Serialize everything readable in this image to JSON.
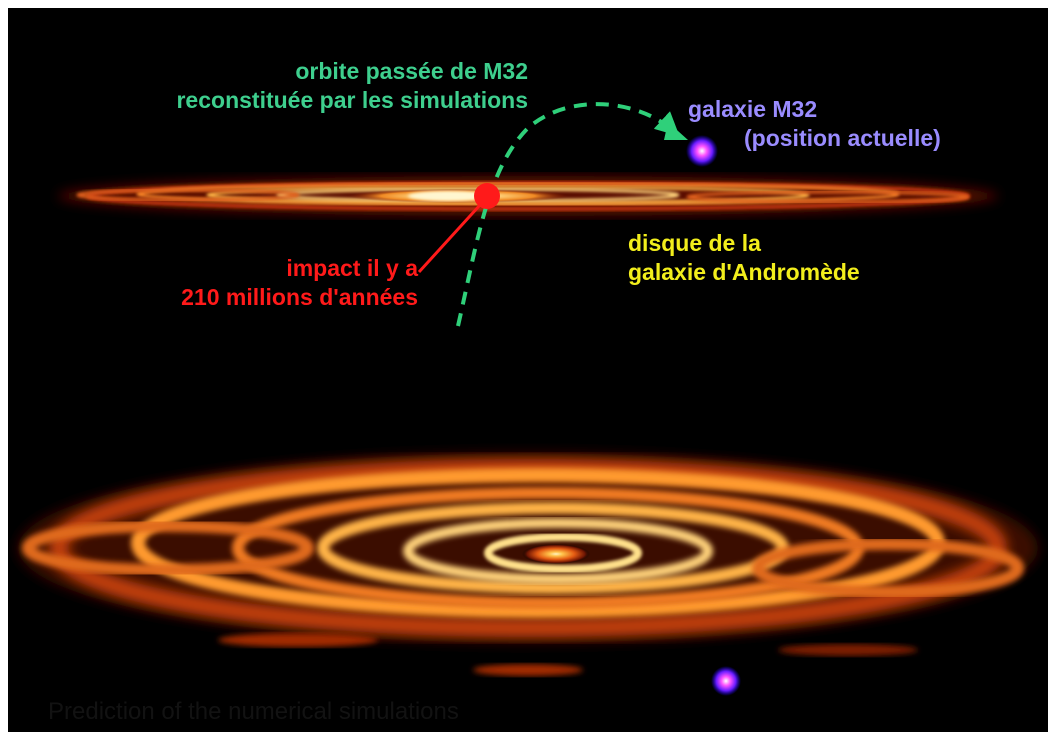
{
  "annotations": {
    "orbit_label": {
      "line1": "orbite passée de M32",
      "line2": "reconstituée par les simulations"
    },
    "m32_label": {
      "line1": "galaxie M32",
      "line2": "(position actuelle)"
    },
    "disk_label": {
      "line1": "disque de la",
      "line2": "galaxie d'Andromède"
    },
    "impact_label": {
      "line1": "impact il y a",
      "line2": "210 millions d'années"
    }
  },
  "caption": "Prediction of the numerical simulations",
  "colors": {
    "background": "#000000",
    "orbit": "#2fd07a",
    "orbit_label": "#3ecf8e",
    "m32_label": "#9a8cff",
    "disk_label": "#f2ee1c",
    "impact": "#ff1a1a",
    "caption": "#151515"
  },
  "icons": [
    "orbit-arrow-icon",
    "impact-marker-icon",
    "galaxy-m32-icon"
  ]
}
